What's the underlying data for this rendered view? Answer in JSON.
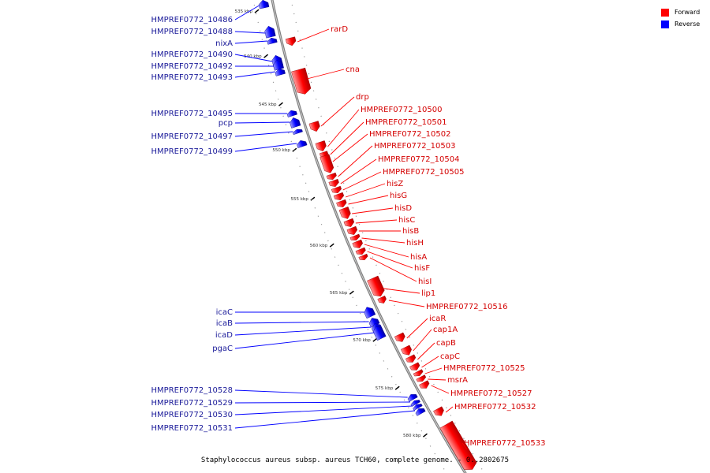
{
  "colors": {
    "forward": "#ff0000",
    "reverse": "#0000ff",
    "label_forward": "#d40000",
    "label_reverse": "#1a1a99",
    "backbone": "#808080"
  },
  "legend": {
    "forward_label": "Forward",
    "reverse_label": "Reverse"
  },
  "caption": "Staphylococcus aureus subsp. aureus TCH60, complete genome. - 0..2802675",
  "scale_ticks": [
    "535 kbp",
    "540 kbp",
    "545 kbp",
    "550 kbp",
    "555 kbp",
    "560 kbp",
    "565 kbp",
    "570 kbp",
    "575 kbp",
    "580 kbp"
  ],
  "reverse_genes": [
    "HMPREF0772_10486",
    "HMPREF0772_10488",
    "nixA",
    "HMPREF0772_10490",
    "HMPREF0772_10492",
    "HMPREF0772_10493",
    "HMPREF0772_10495",
    "pcp",
    "HMPREF0772_10497",
    "HMPREF0772_10499",
    "icaC",
    "icaB",
    "icaD",
    "pgaC",
    "HMPREF0772_10528",
    "HMPREF0772_10529",
    "HMPREF0772_10530",
    "HMPREF0772_10531"
  ],
  "forward_genes": [
    "rarD",
    "cna",
    "drp",
    "HMPREF0772_10500",
    "HMPREF0772_10501",
    "HMPREF0772_10502",
    "HMPREF0772_10503",
    "HMPREF0772_10504",
    "HMPREF0772_10505",
    "hisZ",
    "hisG",
    "hisD",
    "hisC",
    "hisB",
    "hisH",
    "hisA",
    "hisF",
    "hisI",
    "lip1",
    "HMPREF0772_10516",
    "icaR",
    "cap1A",
    "capB",
    "capC",
    "HMPREF0772_10525",
    "msrA",
    "HMPREF0772_10527",
    "HMPREF0772_10532",
    "HMPREF0772_10533"
  ]
}
